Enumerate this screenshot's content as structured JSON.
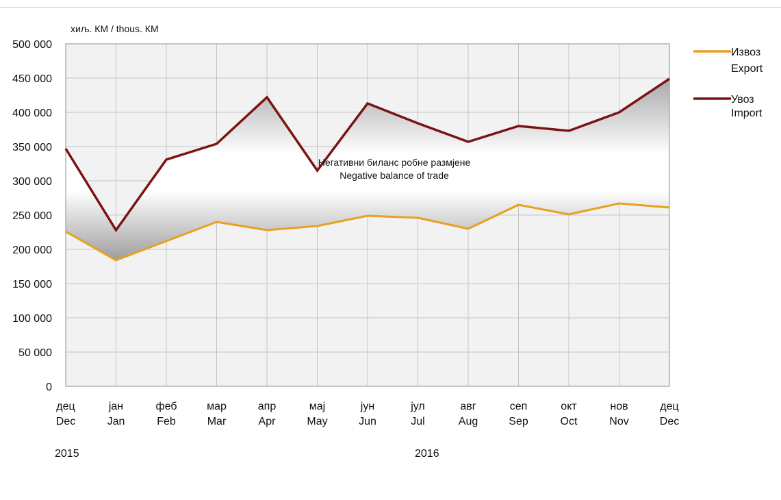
{
  "chart_data": {
    "type": "line",
    "unit_label": "хиљ. КМ / thous. КМ",
    "categories": [
      {
        "cyr": "дец",
        "lat": "Dec"
      },
      {
        "cyr": "јан",
        "lat": "Jan"
      },
      {
        "cyr": "феб",
        "lat": "Feb"
      },
      {
        "cyr": "мар",
        "lat": "Mar"
      },
      {
        "cyr": "апр",
        "lat": "Apr"
      },
      {
        "cyr": "мај",
        "lat": "May"
      },
      {
        "cyr": "јун",
        "lat": "Jun"
      },
      {
        "cyr": "јул",
        "lat": "Jul"
      },
      {
        "cyr": "авг",
        "lat": "Aug"
      },
      {
        "cyr": "сеп",
        "lat": "Sep"
      },
      {
        "cyr": "окт",
        "lat": "Oct"
      },
      {
        "cyr": "нов",
        "lat": "Nov"
      },
      {
        "cyr": "дец",
        "lat": "Dec"
      }
    ],
    "years": [
      "2015",
      "2016"
    ],
    "y_ticks": [
      "0",
      "50 000",
      "100 000",
      "150 000",
      "200 000",
      "250 000",
      "300 000",
      "350 000",
      "400 000",
      "450 000",
      "500 000"
    ],
    "ylim": [
      0,
      500000
    ],
    "grid": true,
    "legend_position": "right",
    "series": [
      {
        "name_cyr": "Извоз",
        "name_lat": "Export",
        "color": "#E8A020",
        "values": [
          226000,
          184000,
          212000,
          240000,
          228000,
          234000,
          249000,
          246000,
          230000,
          265000,
          251000,
          267000,
          261000
        ]
      },
      {
        "name_cyr": "Увоз",
        "name_lat": "Import",
        "color": "#7A1414",
        "values": [
          347000,
          228000,
          331000,
          354000,
          422000,
          315000,
          413000,
          384000,
          357000,
          380000,
          373000,
          400000,
          449000
        ]
      }
    ],
    "annotation": {
      "line1": "Негативни биланс робне размјене",
      "line2": "Negative balance of trade"
    }
  }
}
